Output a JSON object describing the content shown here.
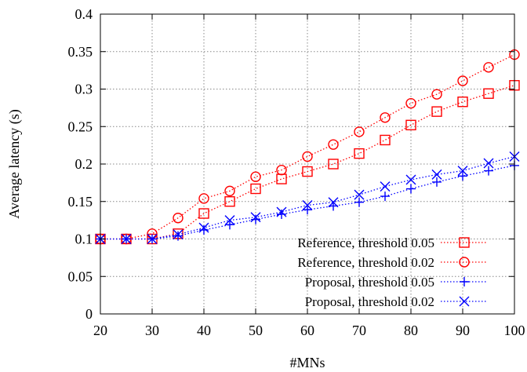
{
  "chart_data": {
    "type": "line",
    "xlabel": "#MNs",
    "ylabel": "Average latency (s)",
    "xlim": [
      20,
      100
    ],
    "ylim": [
      0,
      0.4
    ],
    "xticks": [
      "20",
      "30",
      "40",
      "50",
      "60",
      "70",
      "80",
      "90",
      "100"
    ],
    "yticks": [
      "0",
      "0.05",
      "0.1",
      "0.15",
      "0.2",
      "0.25",
      "0.3",
      "0.35",
      "0.4"
    ],
    "grid": true,
    "legend_position": "bottom-right",
    "x": [
      20,
      25,
      30,
      35,
      40,
      45,
      50,
      55,
      60,
      65,
      70,
      75,
      80,
      85,
      90,
      95,
      100
    ],
    "series": [
      {
        "name": "Reference, threshold 0.05",
        "color": "#ff0000",
        "marker": "square",
        "values": [
          0.1,
          0.1,
          0.1,
          0.107,
          0.134,
          0.15,
          0.167,
          0.18,
          0.19,
          0.2,
          0.214,
          0.232,
          0.252,
          0.27,
          0.283,
          0.294,
          0.305
        ]
      },
      {
        "name": "Reference, threshold 0.02",
        "color": "#ff0000",
        "marker": "circle",
        "values": [
          0.1,
          0.1,
          0.107,
          0.128,
          0.154,
          0.164,
          0.183,
          0.192,
          0.21,
          0.226,
          0.243,
          0.262,
          0.281,
          0.293,
          0.311,
          0.329,
          0.346
        ]
      },
      {
        "name": "Proposal, threshold 0.05",
        "color": "#0000ff",
        "marker": "plus",
        "values": [
          0.1,
          0.1,
          0.1,
          0.104,
          0.112,
          0.119,
          0.126,
          0.133,
          0.139,
          0.144,
          0.149,
          0.157,
          0.167,
          0.176,
          0.184,
          0.191,
          0.198
        ]
      },
      {
        "name": "Proposal, threshold 0.02",
        "color": "#0000ff",
        "marker": "cross",
        "values": [
          0.1,
          0.1,
          0.1,
          0.106,
          0.115,
          0.125,
          0.129,
          0.136,
          0.145,
          0.149,
          0.159,
          0.17,
          0.179,
          0.186,
          0.191,
          0.201,
          0.21
        ]
      }
    ]
  }
}
